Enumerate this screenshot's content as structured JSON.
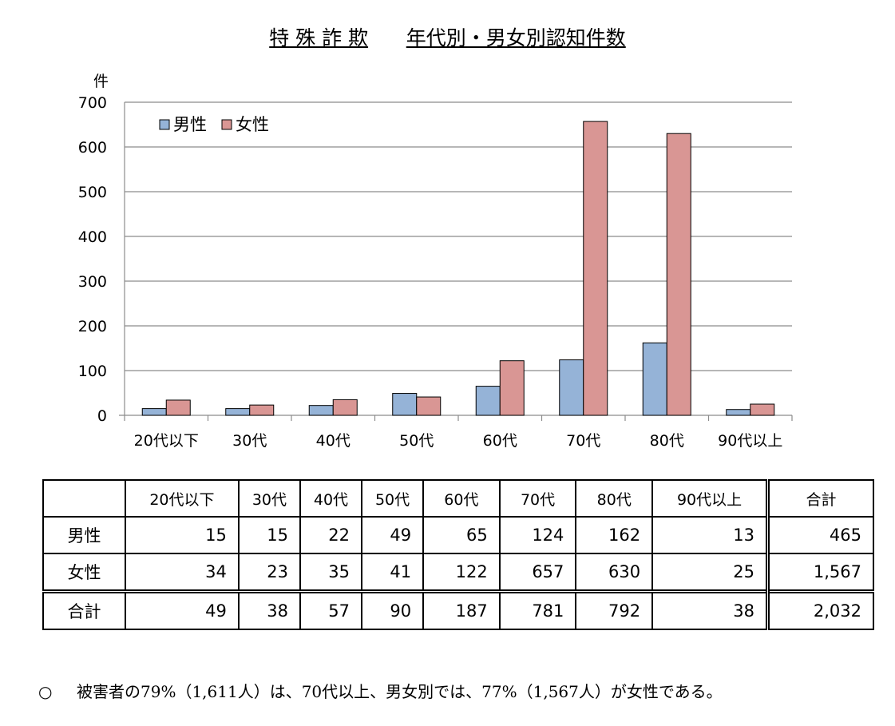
{
  "title": {
    "main": "特 殊 詐 欺",
    "sub": "年代別・男女別認知件数"
  },
  "chart_data": {
    "type": "bar",
    "ylabel": "件",
    "ylim": [
      0,
      700
    ],
    "yticks": [
      0,
      100,
      200,
      300,
      400,
      500,
      600,
      700
    ],
    "grid": true,
    "legend_position": "top-left",
    "categories": [
      "20代以下",
      "30代",
      "40代",
      "50代",
      "60代",
      "70代",
      "80代",
      "90代以上"
    ],
    "series": [
      {
        "name": "男性",
        "color": "#95b3d7",
        "values": [
          15,
          15,
          22,
          49,
          65,
          124,
          162,
          13
        ]
      },
      {
        "name": "女性",
        "color": "#d99694",
        "values": [
          34,
          23,
          35,
          41,
          122,
          657,
          630,
          25
        ]
      }
    ]
  },
  "table": {
    "headers": [
      "20代以下",
      "30代",
      "40代",
      "50代",
      "60代",
      "70代",
      "80代",
      "90代以上",
      "合計"
    ],
    "rows": [
      {
        "label": "男性",
        "values": [
          "15",
          "15",
          "22",
          "49",
          "65",
          "124",
          "162",
          "13",
          "465"
        ]
      },
      {
        "label": "女性",
        "values": [
          "34",
          "23",
          "35",
          "41",
          "122",
          "657",
          "630",
          "25",
          "1,567"
        ]
      },
      {
        "label": "合計",
        "values": [
          "49",
          "38",
          "57",
          "90",
          "187",
          "781",
          "792",
          "38",
          "2,032"
        ]
      }
    ]
  },
  "footnote": {
    "marker": "○",
    "text": "被害者の79%（1,611人）は、70代以上、男女別では、77%（1,567人）が女性である。"
  }
}
